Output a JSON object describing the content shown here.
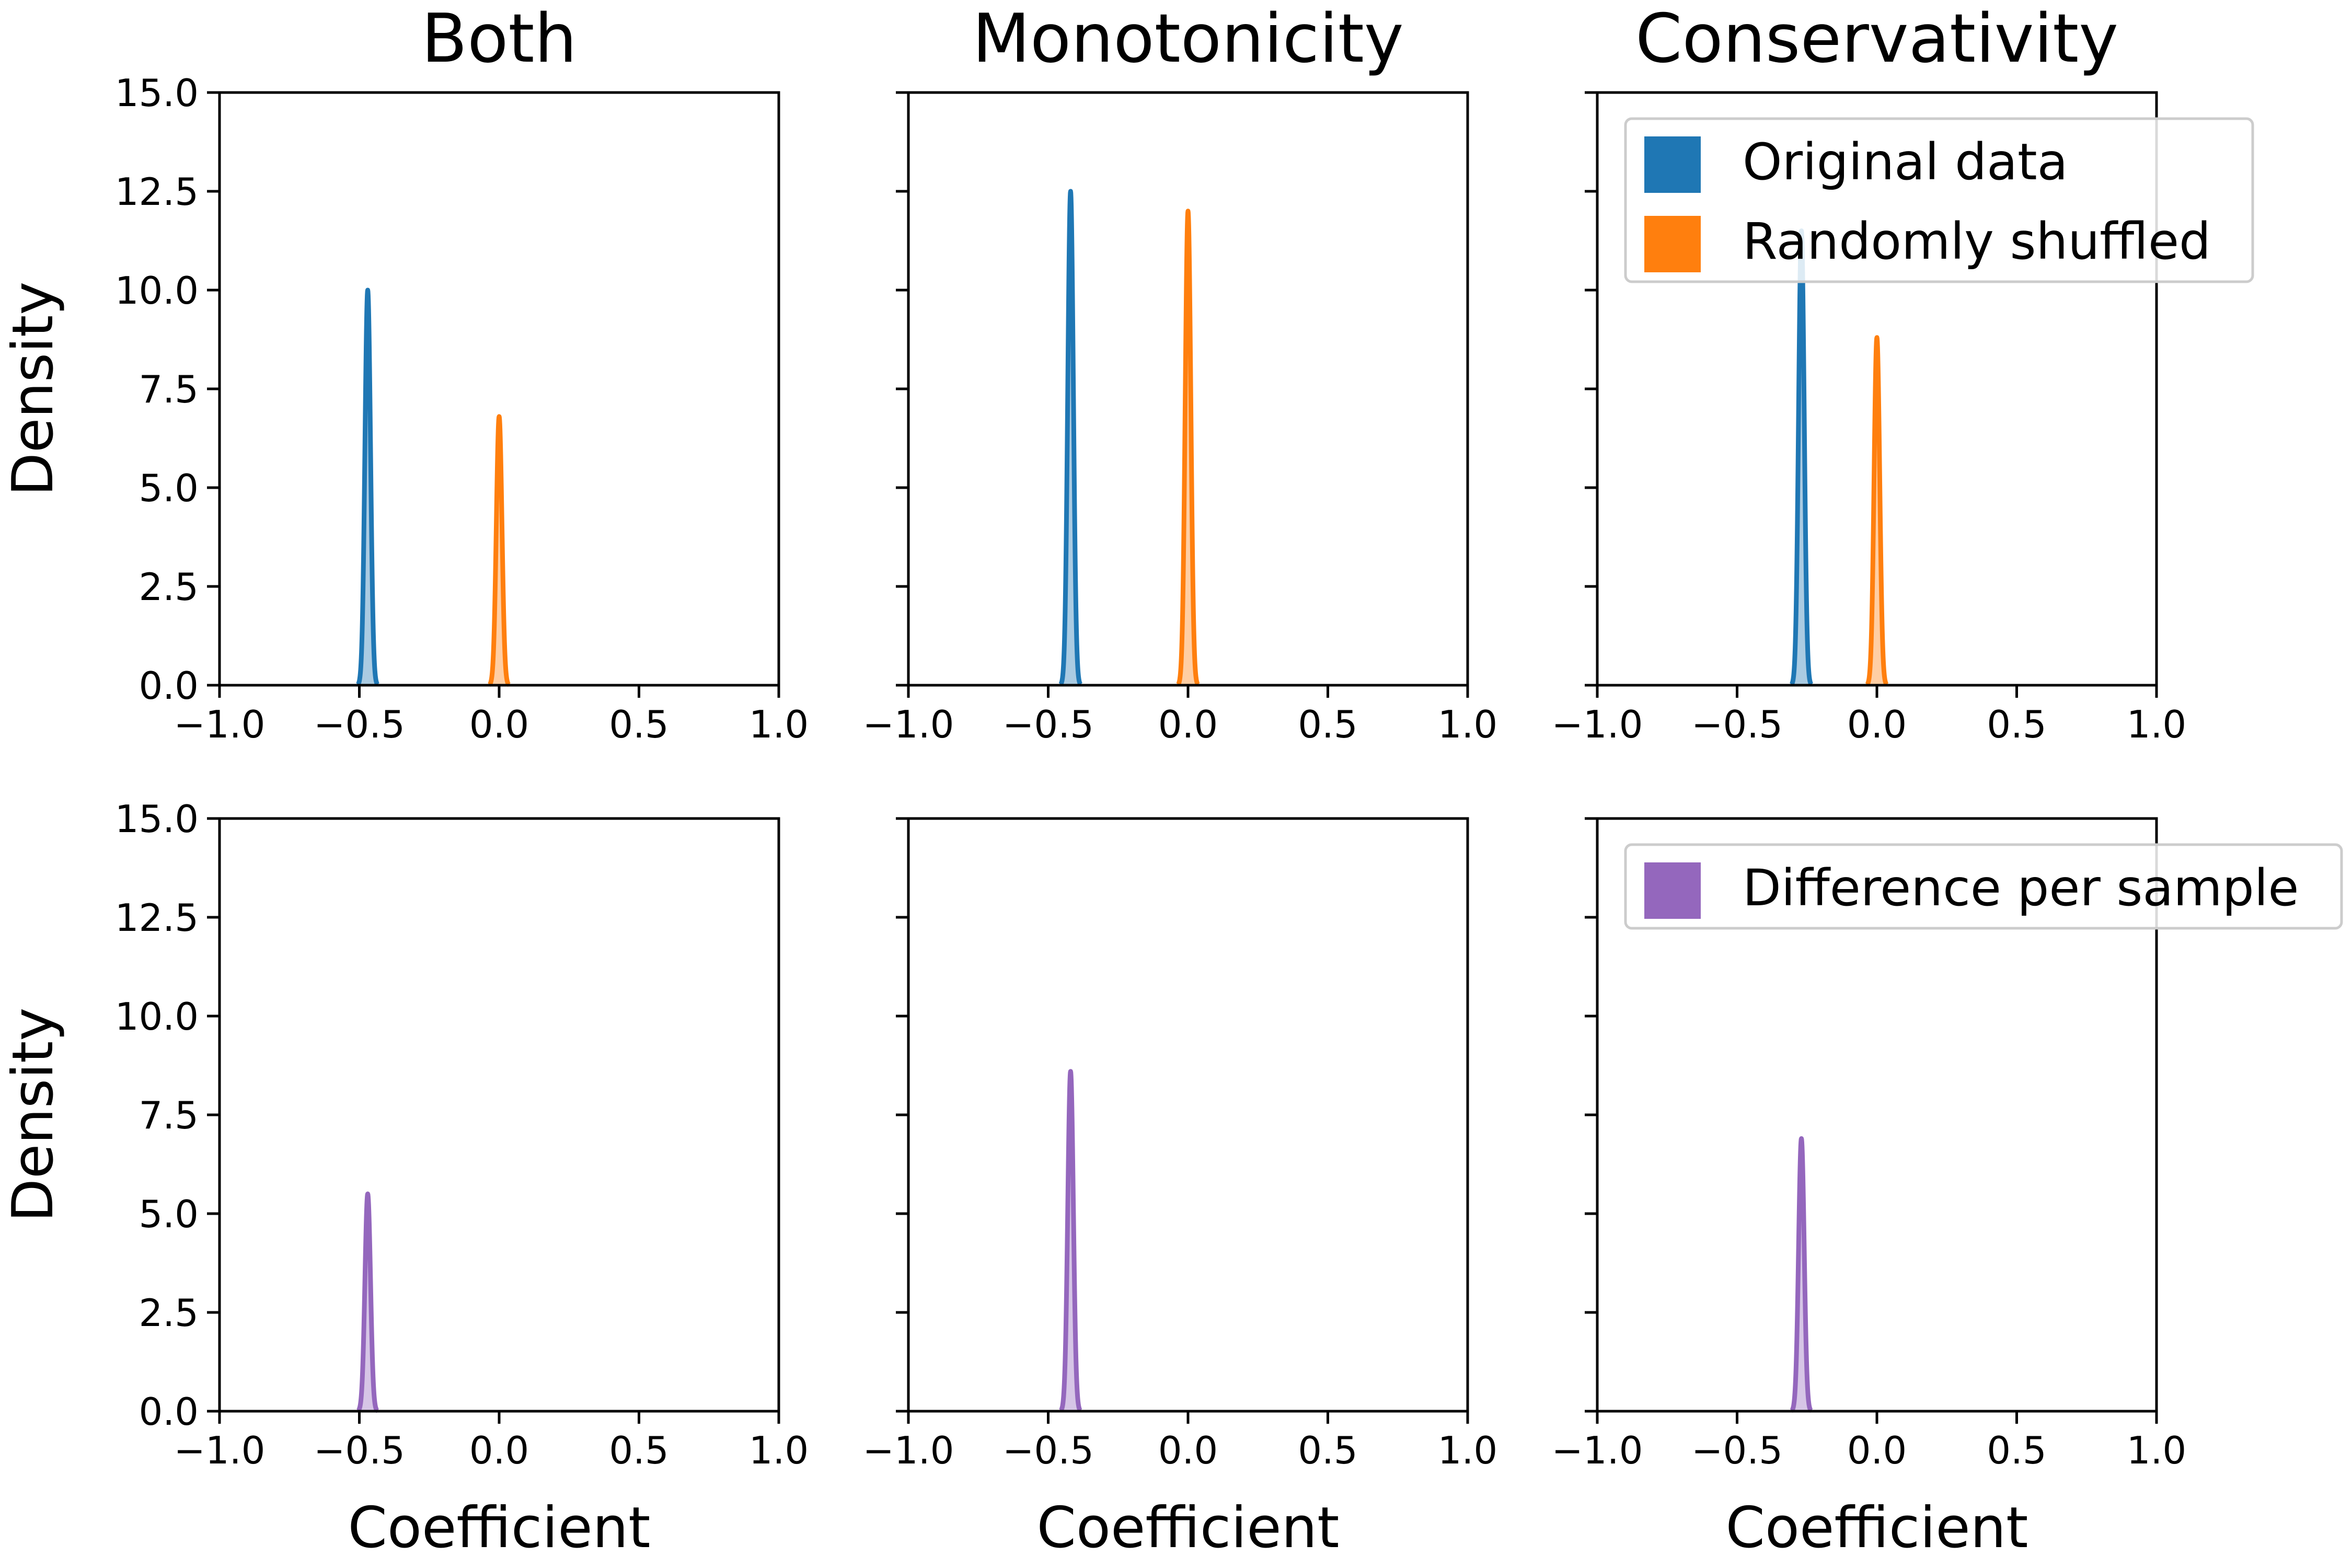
{
  "colors": {
    "original": "#1f77b4",
    "shuffled": "#ff7f0e",
    "difference": "#9467bd"
  },
  "chart_data": {
    "type": "area",
    "grid": false,
    "layout": "2x3 small multiples, shared y axis per row",
    "xlim": [
      -1.0,
      1.0
    ],
    "ylim": [
      0,
      15
    ],
    "x_ticks": [
      "−1.0",
      "−0.5",
      "0.0",
      "0.5",
      "1.0"
    ],
    "y_ticks": [
      "0.0",
      "2.5",
      "5.0",
      "7.5",
      "10.0",
      "12.5",
      "15.0"
    ],
    "ylabel": "Density",
    "xlabel": "Coefficient",
    "column_titles": [
      "Both",
      "Monotonicity",
      "Conservativity"
    ],
    "legends": {
      "top": [
        "Original data",
        "Randomly shuffled"
      ],
      "bottom": [
        "Difference per sample"
      ]
    },
    "legend_placement": "upper-right of right column",
    "series": [
      {
        "name": "Original data",
        "row": 0,
        "col": 0,
        "color_key": "original",
        "peak_x": -0.47,
        "peak_density": 10.0
      },
      {
        "name": "Randomly shuffled",
        "row": 0,
        "col": 0,
        "color_key": "shuffled",
        "peak_x": 0.0,
        "peak_density": 6.8
      },
      {
        "name": "Original data",
        "row": 0,
        "col": 1,
        "color_key": "original",
        "peak_x": -0.42,
        "peak_density": 12.5
      },
      {
        "name": "Randomly shuffled",
        "row": 0,
        "col": 1,
        "color_key": "shuffled",
        "peak_x": 0.0,
        "peak_density": 12.0
      },
      {
        "name": "Original data",
        "row": 0,
        "col": 2,
        "color_key": "original",
        "peak_x": -0.27,
        "peak_density": 11.5
      },
      {
        "name": "Randomly shuffled",
        "row": 0,
        "col": 2,
        "color_key": "shuffled",
        "peak_x": 0.0,
        "peak_density": 8.8
      },
      {
        "name": "Difference per sample",
        "row": 1,
        "col": 0,
        "color_key": "difference",
        "peak_x": -0.47,
        "peak_density": 5.5
      },
      {
        "name": "Difference per sample",
        "row": 1,
        "col": 1,
        "color_key": "difference",
        "peak_x": -0.42,
        "peak_density": 8.6
      },
      {
        "name": "Difference per sample",
        "row": 1,
        "col": 2,
        "color_key": "difference",
        "peak_x": -0.27,
        "peak_density": 6.9
      }
    ]
  }
}
